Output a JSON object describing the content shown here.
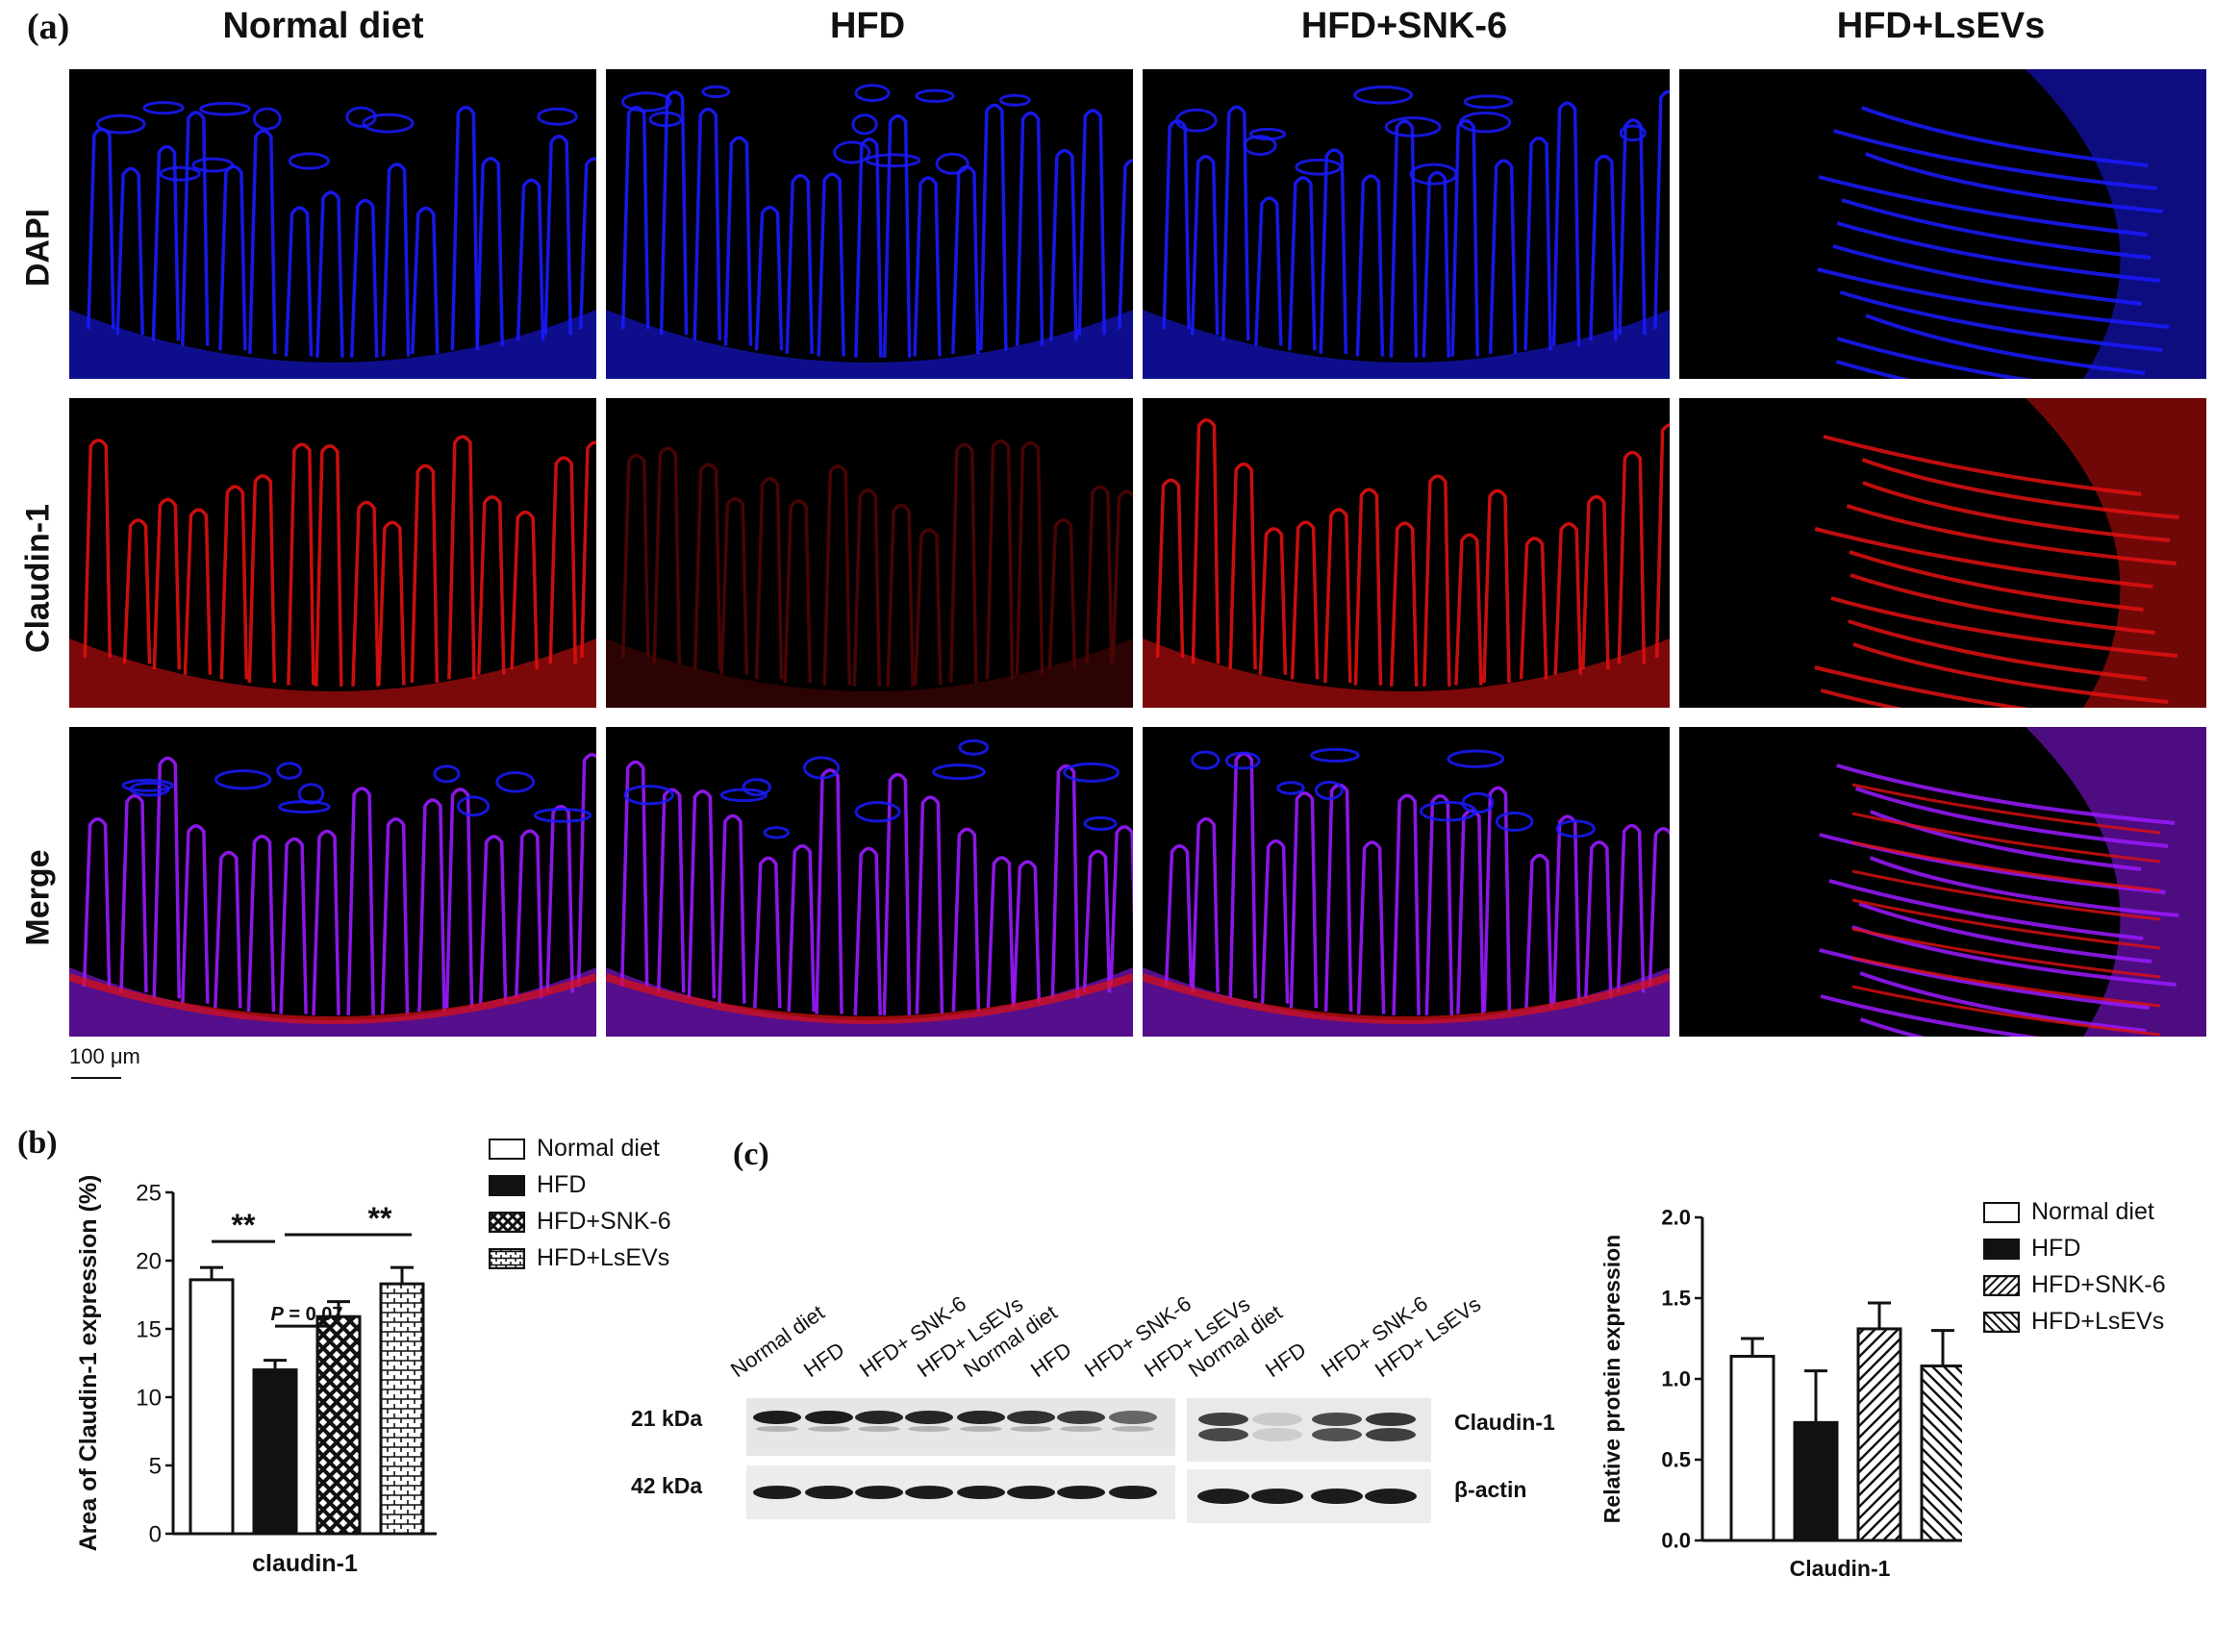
{
  "panel_a": {
    "label": "(a)",
    "columns": [
      "Normal diet",
      "HFD",
      "HFD+SNK-6",
      "HFD+LsEVs"
    ],
    "rows": [
      "DAPI",
      "Claudin-1",
      "Merge"
    ],
    "scale_bar": "100 μm",
    "stain_colors": {
      "DAPI": "#1a1aff",
      "Claudin-1": "#e01010",
      "Merge": "#9a1aff"
    }
  },
  "panel_b": {
    "label": "(b)",
    "legend": [
      "Normal diet",
      "HFD",
      "HFD+SNK-6",
      "HFD+LsEVs"
    ],
    "sig_left": "**",
    "sig_right": "**",
    "p_text_italic": "P",
    "p_text_rest": " = 0.07"
  },
  "panel_c": {
    "label": "(c)",
    "blot_lanes": [
      "Normal diet",
      "HFD",
      "HFD+ SNK-6",
      "HFD+ LsEVs",
      "Normal diet",
      "HFD",
      "HFD+ SNK-6",
      "HFD+ LsEVs",
      "Normal diet",
      "HFD",
      "HFD+ SNK-6",
      "HFD+ LsEVs"
    ],
    "mw_top": "21 kDa",
    "mw_bottom": "42 kDa",
    "band_top": "Claudin-1",
    "band_bottom": "β-actin",
    "legend": [
      "Normal diet",
      "HFD",
      "HFD+SNK-6",
      "HFD+LsEVs"
    ]
  },
  "chart_data": [
    {
      "type": "bar",
      "ylabel": "Area of Claudin-1 expression (%)",
      "xlabel": "claudin-1",
      "categories": [
        "Normal diet",
        "HFD",
        "HFD+SNK-6",
        "HFD+LsEVs"
      ],
      "values": [
        18.6,
        12.0,
        15.9,
        18.3
      ],
      "errors": [
        0.9,
        0.7,
        1.1,
        1.2
      ],
      "yticks": [
        0,
        5,
        10,
        15,
        20,
        25
      ],
      "ylim": [
        0,
        25
      ]
    },
    {
      "type": "bar",
      "ylabel": "Relative protein expression",
      "xlabel": "Claudin-1",
      "categories": [
        "Normal diet",
        "HFD",
        "HFD+SNK-6",
        "HFD+LsEVs"
      ],
      "values": [
        1.14,
        0.73,
        1.31,
        1.08
      ],
      "errors": [
        0.11,
        0.32,
        0.16,
        0.22
      ],
      "yticks": [
        "0.0",
        "0.5",
        "1.0",
        "1.5",
        "2.0"
      ],
      "ylim": [
        0,
        2.0
      ]
    }
  ]
}
